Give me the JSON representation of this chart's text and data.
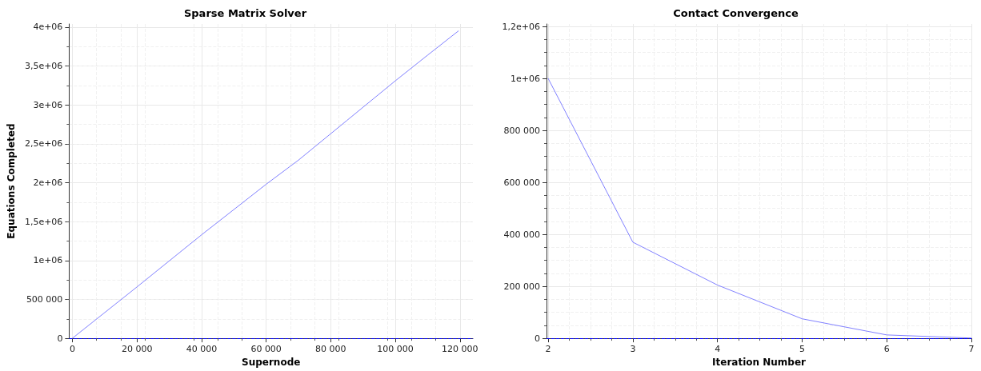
{
  "chart_data": [
    {
      "type": "line",
      "title": "Sparse Matrix Solver",
      "xlabel": "Supernode",
      "ylabel": "Equations Completed",
      "x": [
        0,
        20000,
        40000,
        60000,
        70000,
        85000,
        100000,
        110000,
        119500
      ],
      "series": [
        {
          "color": "#8080ff",
          "values": [
            0,
            660000,
            1330000,
            1980000,
            2290000,
            2800000,
            3310000,
            3640000,
            3950000
          ]
        }
      ],
      "xlim": [
        -1000,
        124000
      ],
      "xticks": [
        0,
        {
          "value": 20000,
          "label": "20 000"
        },
        {
          "value": 40000,
          "label": "40 000"
        },
        {
          "value": 60000,
          "label": "60 000"
        },
        {
          "value": 80000,
          "label": "80 000"
        },
        {
          "value": 100000,
          "label": "100 000"
        },
        {
          "value": 120000,
          "label": "120 000"
        }
      ],
      "ylim": [
        0,
        4040000
      ],
      "yticks": [
        0,
        {
          "value": 500000,
          "label": "500 000"
        },
        {
          "value": 1000000,
          "label": "1e+06"
        },
        {
          "value": 1500000,
          "label": "1,5e+06"
        },
        {
          "value": 2000000,
          "label": "2e+06"
        },
        {
          "value": 2500000,
          "label": "2,5e+06"
        },
        {
          "value": 3000000,
          "label": "3e+06"
        },
        {
          "value": 3500000,
          "label": "3,5e+06"
        },
        {
          "value": 4000000,
          "label": "4e+06"
        }
      ],
      "ref_lines": [
        {
          "axis": "y",
          "value": 0,
          "color": "#0000ff",
          "line_style": "dashed"
        }
      ],
      "grid": true,
      "marker": "none",
      "line_style": "solid"
    },
    {
      "type": "line",
      "title": "Contact Convergence",
      "xlabel": "Iteration Number",
      "x": [
        2,
        3,
        4,
        5,
        6,
        7
      ],
      "series": [
        {
          "color": "#8080ff",
          "values": [
            1000000,
            370000,
            205000,
            75000,
            13000,
            1000
          ]
        }
      ],
      "xlim": [
        1.98,
        7
      ],
      "xticks": [
        2,
        3,
        4,
        5,
        6,
        7
      ],
      "ylim": [
        0,
        1210000
      ],
      "yticks": [
        0,
        {
          "value": 200000,
          "label": "200 000"
        },
        {
          "value": 400000,
          "label": "400 000"
        },
        {
          "value": 600000,
          "label": "600 000"
        },
        {
          "value": 800000,
          "label": "800 000"
        },
        {
          "value": 1000000,
          "label": "1e+06"
        },
        {
          "value": 1200000,
          "label": "1,2e+06"
        }
      ],
      "ref_lines": [
        {
          "axis": "y",
          "value": 0,
          "color": "#0000ff",
          "line_style": "dashed"
        }
      ],
      "grid": true,
      "marker": "none",
      "line_style": "solid"
    }
  ]
}
